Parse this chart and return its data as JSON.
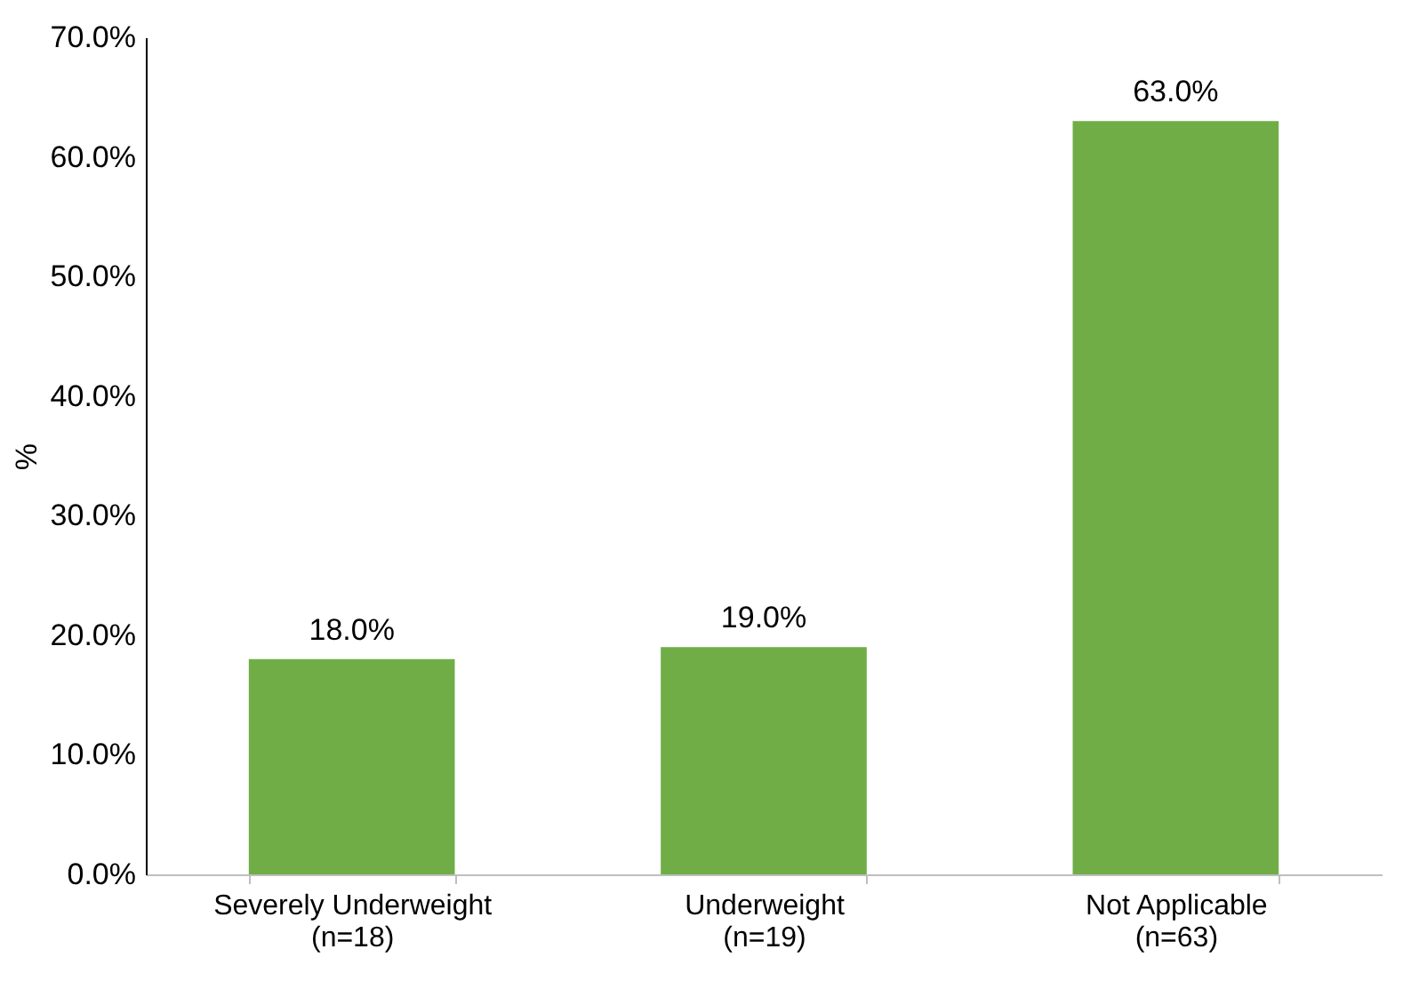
{
  "chart_data": {
    "type": "bar",
    "ylabel": "%",
    "categories": [
      "Severely Underweight\n(n=18)",
      "Underweight\n(n=19)",
      "Not Applicable\n(n=63)"
    ],
    "values": [
      18.0,
      19.0,
      63.0
    ],
    "value_labels": [
      "18.0%",
      "19.0%",
      "63.0%"
    ],
    "color": "#70ad47",
    "ylim": [
      0,
      70
    ],
    "yticks": [
      {
        "value": 0,
        "label": "0.0%"
      },
      {
        "value": 10,
        "label": "10.0%"
      },
      {
        "value": 20,
        "label": "20.0%"
      },
      {
        "value": 30,
        "label": "30.0%"
      },
      {
        "value": 40,
        "label": "40.0%"
      },
      {
        "value": 50,
        "label": "50.0%"
      },
      {
        "value": 60,
        "label": "60.0%"
      },
      {
        "value": 70,
        "label": "70.0%"
      }
    ],
    "grid": false
  }
}
